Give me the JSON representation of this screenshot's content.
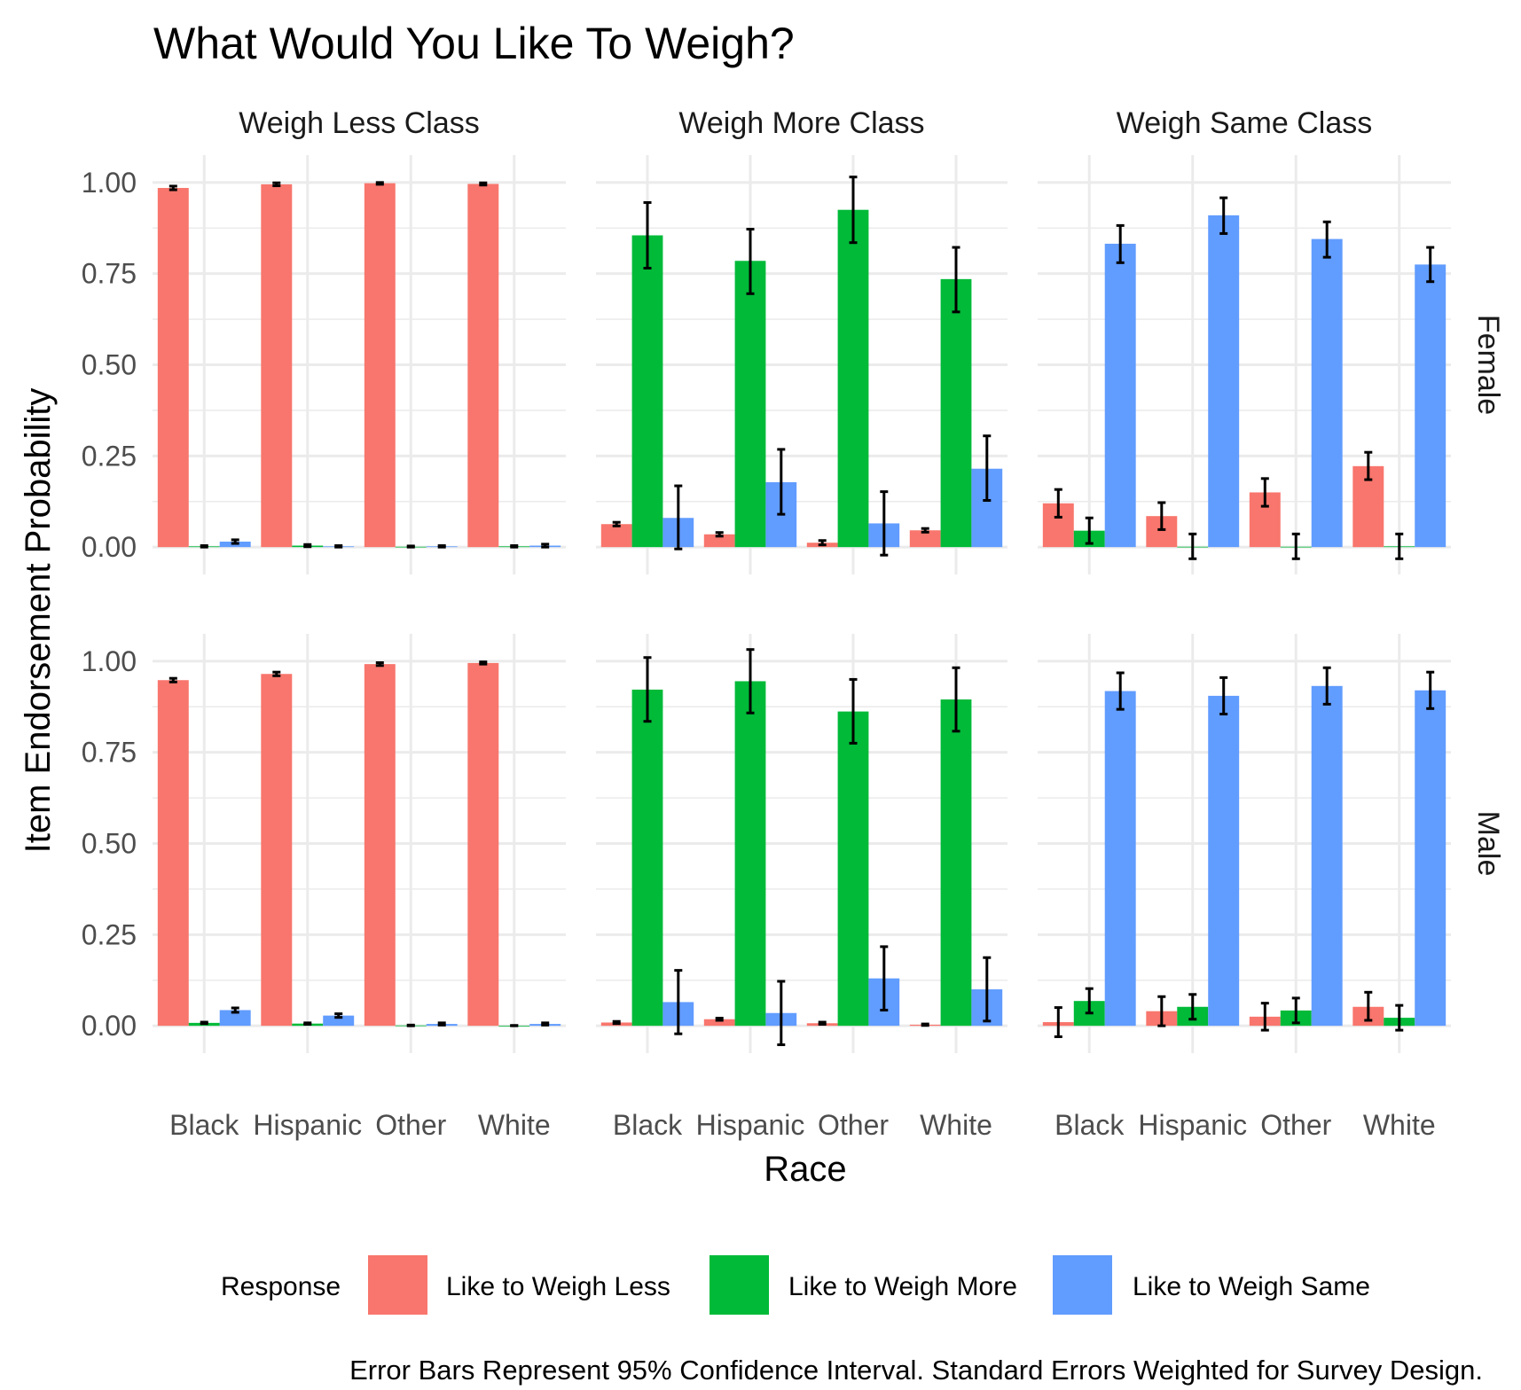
{
  "chart_data": {
    "type": "bar",
    "title": "What Would You Like To Weigh?",
    "xlabel": "Race",
    "ylabel": "Item Endorsement Probability",
    "caption": "Error Bars Represent 95% Confidence Interval. Standard Errors Weighted for Survey Design.",
    "ylim": [
      0,
      1.05
    ],
    "yticks": [
      0,
      0.25,
      0.5,
      0.75,
      1.0
    ],
    "ytick_labels": [
      "0.00",
      "0.25",
      "0.50",
      "0.75",
      "1.00"
    ],
    "categories": [
      "Black",
      "Hispanic",
      "Other",
      "White"
    ],
    "grid": true,
    "legend": {
      "title": "Response",
      "position": "bottom",
      "entries": [
        {
          "label": "Like to Weigh Less",
          "color": "#F8766D"
        },
        {
          "label": "Like to Weigh More",
          "color": "#00BA38"
        },
        {
          "label": "Like to Weigh Same",
          "color": "#619CFF"
        }
      ]
    },
    "col_facets": [
      "Weigh Less Class",
      "Weigh More Class",
      "Weigh Same Class"
    ],
    "row_facets": [
      "Female",
      "Male"
    ],
    "panels": [
      {
        "row": "Female",
        "col": "Weigh Less Class",
        "series": [
          {
            "name": "Like to Weigh Less",
            "values": [
              0.985,
              0.995,
              0.998,
              0.996
            ],
            "lower": [
              0.98,
              0.991,
              0.995,
              0.993
            ],
            "upper": [
              0.99,
              0.999,
              1.0,
              0.999
            ]
          },
          {
            "name": "Like to Weigh More",
            "values": [
              0.002,
              0.004,
              0.001,
              0.002
            ],
            "lower": [
              0.0,
              0.001,
              0.0,
              0.0
            ],
            "upper": [
              0.004,
              0.007,
              0.003,
              0.004
            ]
          },
          {
            "name": "Like to Weigh Same",
            "values": [
              0.015,
              0.002,
              0.002,
              0.004
            ],
            "lower": [
              0.01,
              0.0,
              0.0,
              0.0
            ],
            "upper": [
              0.02,
              0.004,
              0.004,
              0.008
            ]
          }
        ]
      },
      {
        "row": "Female",
        "col": "Weigh More Class",
        "series": [
          {
            "name": "Like to Weigh Less",
            "values": [
              0.063,
              0.035,
              0.012,
              0.046
            ],
            "lower": [
              0.058,
              0.03,
              0.006,
              0.041
            ],
            "upper": [
              0.068,
              0.04,
              0.018,
              0.051
            ]
          },
          {
            "name": "Like to Weigh More",
            "values": [
              0.855,
              0.785,
              0.925,
              0.735
            ],
            "lower": [
              0.765,
              0.695,
              0.835,
              0.645
            ],
            "upper": [
              0.945,
              0.872,
              1.015,
              0.822
            ]
          },
          {
            "name": "Like to Weigh Same",
            "values": [
              0.08,
              0.178,
              0.065,
              0.215
            ],
            "lower": [
              -0.005,
              0.09,
              -0.022,
              0.128
            ],
            "upper": [
              0.168,
              0.268,
              0.152,
              0.305
            ]
          }
        ]
      },
      {
        "row": "Female",
        "col": "Weigh Same Class",
        "series": [
          {
            "name": "Like to Weigh Less",
            "values": [
              0.12,
              0.085,
              0.15,
              0.222
            ],
            "lower": [
              0.082,
              0.048,
              0.112,
              0.185
            ],
            "upper": [
              0.158,
              0.122,
              0.188,
              0.26
            ]
          },
          {
            "name": "Like to Weigh More",
            "values": [
              0.045,
              0.001,
              0.001,
              0.002
            ],
            "lower": [
              0.01,
              -0.032,
              -0.032,
              -0.032
            ],
            "upper": [
              0.08,
              0.036,
              0.036,
              0.036
            ]
          },
          {
            "name": "Like to Weigh Same",
            "values": [
              0.832,
              0.91,
              0.845,
              0.775
            ],
            "lower": [
              0.78,
              0.86,
              0.795,
              0.728
            ],
            "upper": [
              0.882,
              0.958,
              0.892,
              0.822
            ]
          }
        ]
      },
      {
        "row": "Male",
        "col": "Weigh Less Class",
        "series": [
          {
            "name": "Like to Weigh Less",
            "values": [
              0.948,
              0.965,
              0.992,
              0.995
            ],
            "lower": [
              0.943,
              0.96,
              0.988,
              0.992
            ],
            "upper": [
              0.953,
              0.97,
              0.996,
              0.998
            ]
          },
          {
            "name": "Like to Weigh More",
            "values": [
              0.008,
              0.006,
              0.001,
              0.0
            ],
            "lower": [
              0.006,
              0.004,
              0.0,
              0.0
            ],
            "upper": [
              0.01,
              0.008,
              0.002,
              0.001
            ]
          },
          {
            "name": "Like to Weigh Same",
            "values": [
              0.043,
              0.028,
              0.005,
              0.005
            ],
            "lower": [
              0.037,
              0.023,
              0.002,
              0.002
            ],
            "upper": [
              0.049,
              0.033,
              0.008,
              0.008
            ]
          }
        ]
      },
      {
        "row": "Male",
        "col": "Weigh More Class",
        "series": [
          {
            "name": "Like to Weigh Less",
            "values": [
              0.009,
              0.018,
              0.007,
              0.003
            ],
            "lower": [
              0.006,
              0.015,
              0.004,
              0.001
            ],
            "upper": [
              0.012,
              0.021,
              0.01,
              0.005
            ]
          },
          {
            "name": "Like to Weigh More",
            "values": [
              0.922,
              0.945,
              0.862,
              0.895
            ],
            "lower": [
              0.835,
              0.858,
              0.775,
              0.808
            ],
            "upper": [
              1.01,
              1.032,
              0.95,
              0.982
            ]
          },
          {
            "name": "Like to Weigh Same",
            "values": [
              0.065,
              0.035,
              0.13,
              0.1
            ],
            "lower": [
              -0.022,
              -0.052,
              0.043,
              0.013
            ],
            "upper": [
              0.152,
              0.122,
              0.217,
              0.187
            ]
          }
        ]
      },
      {
        "row": "Male",
        "col": "Weigh Same Class",
        "series": [
          {
            "name": "Like to Weigh Less",
            "values": [
              0.01,
              0.04,
              0.025,
              0.052
            ],
            "lower": [
              -0.03,
              0.0,
              -0.012,
              0.015
            ],
            "upper": [
              0.05,
              0.08,
              0.062,
              0.092
            ]
          },
          {
            "name": "Like to Weigh More",
            "values": [
              0.068,
              0.052,
              0.042,
              0.022
            ],
            "lower": [
              0.035,
              0.018,
              0.008,
              -0.012
            ],
            "upper": [
              0.102,
              0.086,
              0.076,
              0.056
            ]
          },
          {
            "name": "Like to Weigh Same",
            "values": [
              0.918,
              0.905,
              0.932,
              0.92
            ],
            "lower": [
              0.868,
              0.855,
              0.882,
              0.87
            ],
            "upper": [
              0.968,
              0.955,
              0.982,
              0.97
            ]
          }
        ]
      }
    ]
  }
}
